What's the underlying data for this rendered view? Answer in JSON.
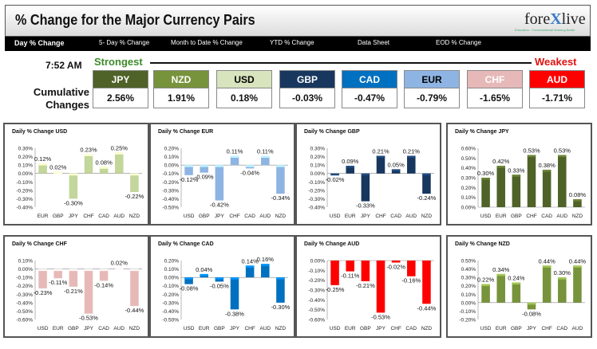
{
  "header": {
    "title": "% Change for the Major Currency Pairs"
  },
  "logo": {
    "text_a": "fore",
    "text_x": "X",
    "text_b": "live",
    "tagline": "Education · Conversational Working Better"
  },
  "nav": [
    {
      "label": "Day % Change",
      "active": true
    },
    {
      "label": "5- Day % Change"
    },
    {
      "label": "Month to Date % Change"
    },
    {
      "label": "YTD % Change"
    },
    {
      "label": "Data Sheet"
    },
    {
      "label": "EOD % Change"
    }
  ],
  "time": "7:52 AM",
  "strongest_label": "Strongest",
  "weakest_label": "Weakest",
  "cumulative_label_1": "Cumulative",
  "cumulative_label_2": "Changes",
  "currencies": [
    {
      "code": "JPY",
      "value": "2.56%",
      "color": "#4f6228",
      "text": "#ffffff"
    },
    {
      "code": "NZD",
      "value": "1.91%",
      "color": "#77933c",
      "text": "#ffffff"
    },
    {
      "code": "USD",
      "value": "0.18%",
      "color": "#d7e4bd",
      "text": "#000000"
    },
    {
      "code": "GBP",
      "value": "-0.03%",
      "color": "#17375e",
      "text": "#ffffff"
    },
    {
      "code": "CAD",
      "value": "-0.47%",
      "color": "#0070c0",
      "text": "#ffffff"
    },
    {
      "code": "EUR",
      "value": "-0.79%",
      "color": "#8eb4e3",
      "text": "#000000"
    },
    {
      "code": "CHF",
      "value": "-1.65%",
      "color": "#e6b9b8",
      "text": "#ffffff"
    },
    {
      "code": "AUD",
      "value": "-1.71%",
      "color": "#ff0000",
      "text": "#ffffff"
    }
  ],
  "chart_data": [
    {
      "type": "bar",
      "title": "Daily % Change USD",
      "color": "#c3d69b",
      "categories": [
        "EUR",
        "GBP",
        "JPY",
        "CHF",
        "CAD",
        "AUD",
        "NZD"
      ],
      "values": [
        0.12,
        0.02,
        -0.3,
        0.23,
        0.08,
        0.25,
        -0.22
      ],
      "labels": [
        "0.12%",
        "0.02%",
        "-0.30%",
        "0.23%",
        "0.08%",
        "0.25%",
        "-0.22%"
      ],
      "yticks": [
        "0.30%",
        "0.20%",
        "0.10%",
        "0.00%",
        "-0.10%",
        "-0.20%",
        "-0.30%",
        "-0.40%"
      ],
      "ylim": [
        -0.4,
        0.3
      ]
    },
    {
      "type": "bar",
      "title": "Daily % Change EUR",
      "color": "#8eb4e3",
      "categories": [
        "USD",
        "GBP",
        "JPY",
        "CHF",
        "CAD",
        "AUD",
        "NZD"
      ],
      "values": [
        -0.12,
        -0.09,
        -0.42,
        0.11,
        -0.04,
        0.11,
        -0.34
      ],
      "labels": [
        "-0.12%",
        "-0.09%",
        "-0.42%",
        "0.11%",
        "-0.04%",
        "0.11%",
        "-0.34%"
      ],
      "yticks": [
        "0.20%",
        "0.10%",
        "0.00%",
        "-0.10%",
        "-0.20%",
        "-0.30%",
        "-0.40%",
        "-0.50%"
      ],
      "ylim": [
        -0.5,
        0.2
      ]
    },
    {
      "type": "bar",
      "title": "Daily % Change GBP",
      "color": "#17375e",
      "categories": [
        "USD",
        "EUR",
        "JPY",
        "CHF",
        "CAD",
        "AUD",
        "NZD"
      ],
      "values": [
        -0.02,
        0.09,
        -0.33,
        0.21,
        0.05,
        0.21,
        -0.24
      ],
      "labels": [
        "-0.02%",
        "0.09%",
        "-0.33%",
        "0.21%",
        "0.05%",
        "0.21%",
        "-0.24%"
      ],
      "yticks": [
        "0.30%",
        "0.20%",
        "0.10%",
        "0.00%",
        "-0.10%",
        "-0.20%",
        "-0.30%",
        "-0.40%"
      ],
      "ylim": [
        -0.4,
        0.3
      ]
    },
    {
      "type": "bar",
      "title": "Daily % Change JPY",
      "color": "#4f6228",
      "categories": [
        "USD",
        "EUR",
        "GBP",
        "CHF",
        "CAD",
        "AUD",
        "NZD"
      ],
      "values": [
        0.3,
        0.42,
        0.33,
        0.53,
        0.38,
        0.53,
        0.08
      ],
      "labels": [
        "0.30%",
        "0.42%",
        "0.33%",
        "0.53%",
        "0.38%",
        "0.53%",
        "0.08%"
      ],
      "yticks": [
        "0.60%",
        "0.50%",
        "0.40%",
        "0.30%",
        "0.20%",
        "0.10%",
        "0.00%"
      ],
      "ylim": [
        0.0,
        0.6
      ]
    },
    {
      "type": "bar",
      "title": "Daily % Change CHF",
      "color": "#e6b9b8",
      "categories": [
        "USD",
        "EUR",
        "GBP",
        "JPY",
        "CAD",
        "AUD",
        "NZD"
      ],
      "values": [
        -0.23,
        -0.11,
        -0.21,
        -0.53,
        -0.14,
        0.02,
        -0.44
      ],
      "labels": [
        "-0.23%",
        "-0.11%",
        "-0.21%",
        "-0.53%",
        "-0.14%",
        "0.02%",
        "-0.44%"
      ],
      "yticks": [
        "0.10%",
        "0.00%",
        "-0.10%",
        "-0.20%",
        "-0.30%",
        "-0.40%",
        "-0.50%",
        "-0.60%"
      ],
      "ylim": [
        -0.6,
        0.1
      ]
    },
    {
      "type": "bar",
      "title": "Daily % Change CAD",
      "color": "#0070c0",
      "categories": [
        "USD",
        "EUR",
        "GBP",
        "JPY",
        "CHF",
        "AUD",
        "NZD"
      ],
      "values": [
        -0.08,
        0.04,
        -0.05,
        -0.38,
        0.14,
        0.16,
        -0.3
      ],
      "labels": [
        "-0.08%",
        "0.04%",
        "-0.05%",
        "-0.38%",
        "0.14%",
        "0.16%",
        "-0.30%"
      ],
      "yticks": [
        "0.20%",
        "0.10%",
        "0.00%",
        "-0.10%",
        "-0.20%",
        "-0.30%",
        "-0.40%",
        "-0.50%"
      ],
      "ylim": [
        -0.5,
        0.2
      ]
    },
    {
      "type": "bar",
      "title": "Daily % Change AUD",
      "color": "#ff0000",
      "categories": [
        "USD",
        "EUR",
        "GBP",
        "JPY",
        "CHF",
        "CAD",
        "NZD"
      ],
      "values": [
        -0.25,
        -0.11,
        -0.21,
        -0.53,
        -0.02,
        -0.16,
        -0.44
      ],
      "labels": [
        "-0.25%",
        "-0.11%",
        "-0.21%",
        "-0.53%",
        "-0.02%",
        "-0.16%",
        "-0.44%"
      ],
      "yticks": [
        "0.00%",
        "-0.10%",
        "-0.20%",
        "-0.30%",
        "-0.40%",
        "-0.50%",
        "-0.60%"
      ],
      "ylim": [
        -0.6,
        0.0
      ]
    },
    {
      "type": "bar",
      "title": "Daily % Change NZD",
      "color": "#77933c",
      "categories": [
        "USD",
        "EUR",
        "GBP",
        "JPY",
        "CHF",
        "CAD",
        "AUD"
      ],
      "values": [
        0.22,
        0.34,
        0.24,
        -0.08,
        0.44,
        0.3,
        0.44
      ],
      "labels": [
        "0.22%",
        "0.34%",
        "0.24%",
        "-0.08%",
        "0.44%",
        "0.30%",
        "0.44%"
      ],
      "yticks": [
        "0.50%",
        "0.40%",
        "0.30%",
        "0.20%",
        "0.10%",
        "0.00%",
        "-0.10%",
        "-0.20%"
      ],
      "ylim": [
        -0.2,
        0.5
      ]
    }
  ]
}
